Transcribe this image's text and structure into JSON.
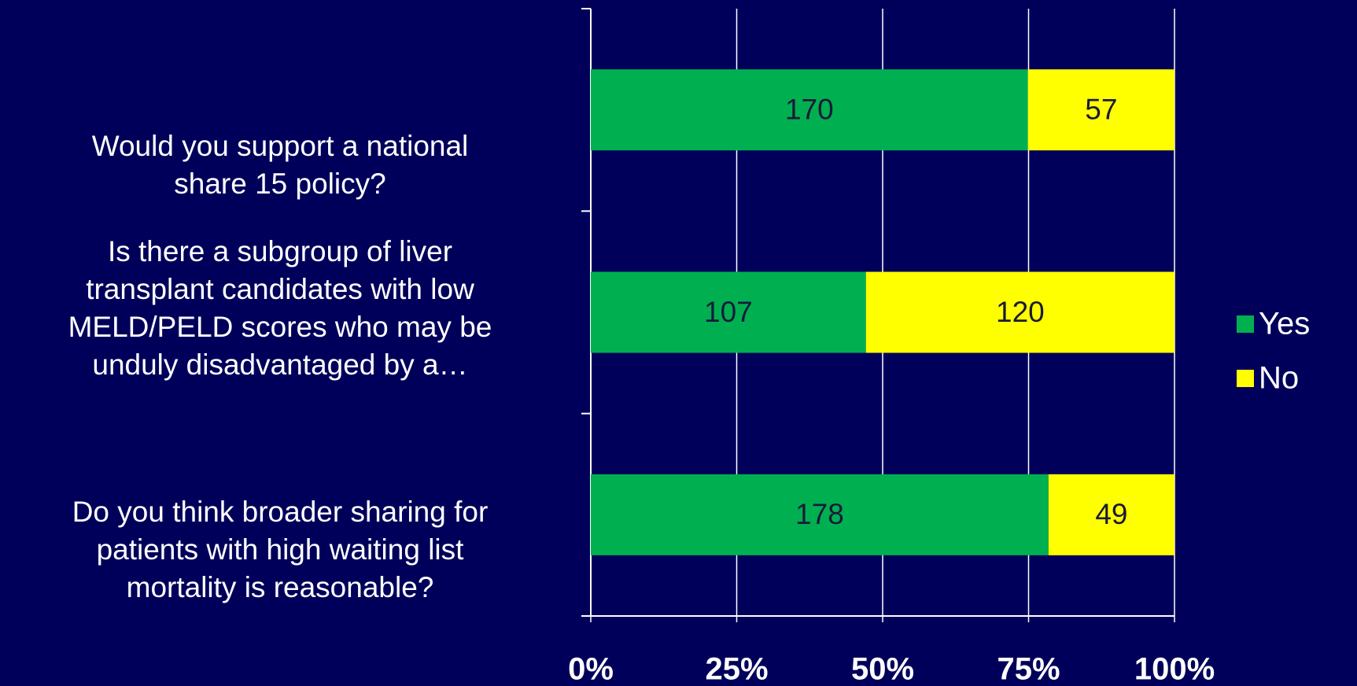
{
  "chart_data": {
    "type": "bar",
    "orientation": "horizontal",
    "stacking": "percent",
    "categories": [
      "Would you support a national\nshare 15 policy?",
      "Is there a subgroup of liver\ntransplant candidates with low\nMELD/PELD scores who may be\nunduly disadvantaged by a…",
      "Do you think broader sharing for\npatients with high waiting list\nmortality is reasonable?"
    ],
    "series": [
      {
        "name": "Yes",
        "color": "#00b050",
        "values": [
          170,
          107,
          178
        ]
      },
      {
        "name": "No",
        "color": "#ffff00",
        "values": [
          57,
          120,
          49
        ]
      }
    ],
    "xlim": [
      0,
      100
    ],
    "xticks": [
      {
        "value": 0,
        "label": "0%"
      },
      {
        "value": 25,
        "label": "25%"
      },
      {
        "value": 50,
        "label": "50%"
      },
      {
        "value": 75,
        "label": "75%"
      },
      {
        "value": 100,
        "label": "100%"
      }
    ],
    "grid": true,
    "legend": "right"
  }
}
